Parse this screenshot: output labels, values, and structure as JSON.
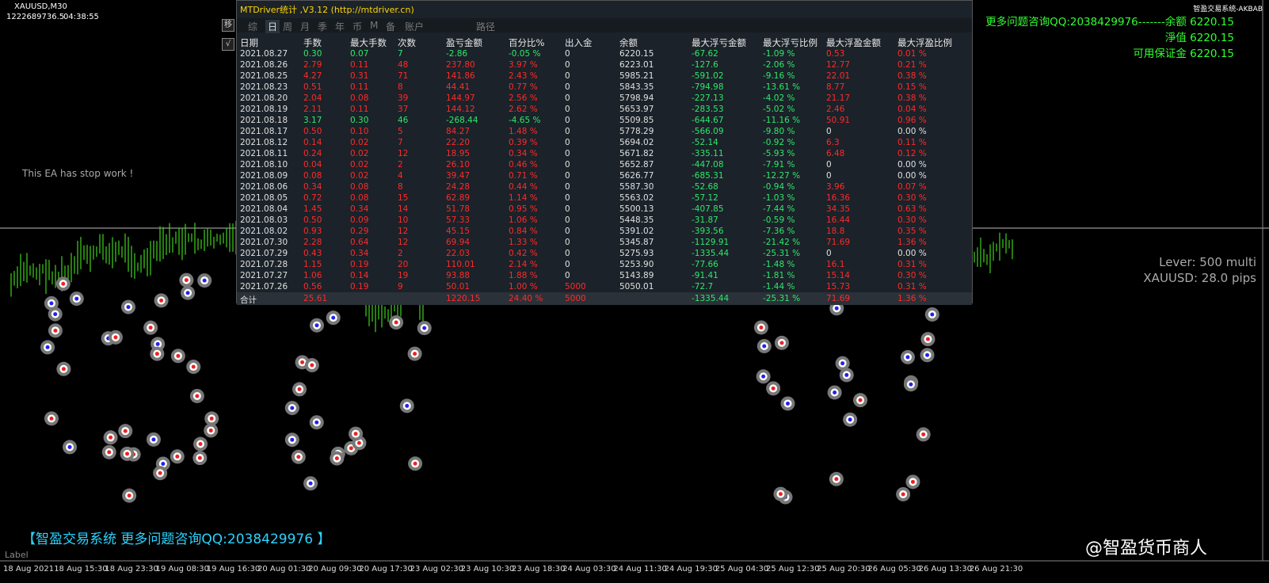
{
  "header": {
    "symbol": "XAUUSD,M30",
    "account": "1222689736.5",
    "time": "04:38:55",
    "brand": "智盈交易系统-AKBAB"
  },
  "account_info": [
    "更多问题咨询QQ:2038429976-------余额 6220.15",
    "淨值 6220.15",
    "可用保证金 6220.15"
  ],
  "status": "This EA has stop work !",
  "lever": [
    "Lever: 500 multi",
    "XAUUSD: 28.0 pips"
  ],
  "footer": {
    "banner": "【智盈交易系统 更多问题咨询QQ:2038429976 】",
    "label": "Label",
    "watermark": "@智盈货币商人"
  },
  "x_axis": [
    "18 Aug 2021",
    "18 Aug 15:30",
    "18 Aug 23:30",
    "19 Aug 08:30",
    "19 Aug 16:30",
    "20 Aug 01:30",
    "20 Aug 09:30",
    "20 Aug 17:30",
    "23 Aug 02:30",
    "23 Aug 10:30",
    "23 Aug 18:30",
    "24 Aug 03:30",
    "24 Aug 11:30",
    "24 Aug 19:30",
    "25 Aug 04:30",
    "25 Aug 12:30",
    "25 Aug 20:30",
    "26 Aug 05:30",
    "26 Aug 13:30",
    "26 Aug 21:30"
  ],
  "panel": {
    "title": "MTDriver统计 ,V3.12 (http://mtdriver.cn)",
    "side_buttons": [
      "移",
      "√"
    ],
    "tabs": [
      "综",
      "日",
      "周",
      "月",
      "季",
      "年",
      "币",
      "M",
      "备",
      "账户",
      "路径"
    ],
    "columns": [
      "日期",
      "手数",
      "最大手数",
      "次数",
      "盈亏金额",
      "百分比%",
      "出入金",
      "余额",
      "最大浮亏金额",
      "最大浮亏比例",
      "最大浮盈金额",
      "最大浮盈比例"
    ],
    "rows": [
      [
        "2021.08.27",
        "0.30",
        "0.07",
        "7",
        "-2.86",
        "-0.05 %",
        "0",
        "6220.15",
        "-67.62",
        "-1.09 %",
        "0.53",
        "0.01 %"
      ],
      [
        "2021.08.26",
        "2.79",
        "0.11",
        "48",
        "237.80",
        "3.97 %",
        "0",
        "6223.01",
        "-127.6",
        "-2.06 %",
        "12.77",
        "0.21 %"
      ],
      [
        "2021.08.25",
        "4.27",
        "0.31",
        "71",
        "141.86",
        "2.43 %",
        "0",
        "5985.21",
        "-591.02",
        "-9.16 %",
        "22.01",
        "0.38 %"
      ],
      [
        "2021.08.23",
        "0.51",
        "0.11",
        "8",
        "44.41",
        "0.77 %",
        "0",
        "5843.35",
        "-794.98",
        "-13.61 %",
        "8.77",
        "0.15 %"
      ],
      [
        "2021.08.20",
        "2.04",
        "0.08",
        "39",
        "144.97",
        "2.56 %",
        "0",
        "5798.94",
        "-227.13",
        "-4.02 %",
        "21.17",
        "0.38 %"
      ],
      [
        "2021.08.19",
        "2.11",
        "0.11",
        "37",
        "144.12",
        "2.62 %",
        "0",
        "5653.97",
        "-283.53",
        "-5.02 %",
        "2.46",
        "0.04 %"
      ],
      [
        "2021.08.18",
        "3.17",
        "0.30",
        "46",
        "-268.44",
        "-4.65 %",
        "0",
        "5509.85",
        "-644.67",
        "-11.16 %",
        "50.91",
        "0.96 %"
      ],
      [
        "2021.08.17",
        "0.50",
        "0.10",
        "5",
        "84.27",
        "1.48 %",
        "0",
        "5778.29",
        "-566.09",
        "-9.80 %",
        "0",
        "0.00 %"
      ],
      [
        "2021.08.12",
        "0.14",
        "0.02",
        "7",
        "22.20",
        "0.39 %",
        "0",
        "5694.02",
        "-52.14",
        "-0.92 %",
        "6.3",
        "0.11 %"
      ],
      [
        "2021.08.11",
        "0.24",
        "0.02",
        "12",
        "18.95",
        "0.34 %",
        "0",
        "5671.82",
        "-335.11",
        "-5.93 %",
        "6.48",
        "0.12 %"
      ],
      [
        "2021.08.10",
        "0.04",
        "0.02",
        "2",
        "26.10",
        "0.46 %",
        "0",
        "5652.87",
        "-447.08",
        "-7.91 %",
        "0",
        "0.00 %"
      ],
      [
        "2021.08.09",
        "0.08",
        "0.02",
        "4",
        "39.47",
        "0.71 %",
        "0",
        "5626.77",
        "-685.31",
        "-12.27 %",
        "0",
        "0.00 %"
      ],
      [
        "2021.08.06",
        "0.34",
        "0.08",
        "8",
        "24.28",
        "0.44 %",
        "0",
        "5587.30",
        "-52.68",
        "-0.94 %",
        "3.96",
        "0.07 %"
      ],
      [
        "2021.08.05",
        "0.72",
        "0.08",
        "15",
        "62.89",
        "1.14 %",
        "0",
        "5563.02",
        "-57.12",
        "-1.03 %",
        "16.36",
        "0.30 %"
      ],
      [
        "2021.08.04",
        "1.45",
        "0.34",
        "14",
        "51.78",
        "0.95 %",
        "0",
        "5500.13",
        "-407.85",
        "-7.44 %",
        "34.35",
        "0.63 %"
      ],
      [
        "2021.08.03",
        "0.50",
        "0.09",
        "10",
        "57.33",
        "1.06 %",
        "0",
        "5448.35",
        "-31.87",
        "-0.59 %",
        "16.44",
        "0.30 %"
      ],
      [
        "2021.08.02",
        "0.93",
        "0.29",
        "12",
        "45.15",
        "0.84 %",
        "0",
        "5391.02",
        "-393.56",
        "-7.36 %",
        "18.8",
        "0.35 %"
      ],
      [
        "2021.07.30",
        "2.28",
        "0.64",
        "12",
        "69.94",
        "1.33 %",
        "0",
        "5345.87",
        "-1129.91",
        "-21.42 %",
        "71.69",
        "1.36 %"
      ],
      [
        "2021.07.29",
        "0.43",
        "0.34",
        "2",
        "22.03",
        "0.42 %",
        "0",
        "5275.93",
        "-1335.44",
        "-25.31 %",
        "0",
        "0.00 %"
      ],
      [
        "2021.07.28",
        "1.15",
        "0.19",
        "20",
        "110.01",
        "2.14 %",
        "0",
        "5253.90",
        "-77.66",
        "-1.48 %",
        "16.1",
        "0.31 %"
      ],
      [
        "2021.07.27",
        "1.06",
        "0.14",
        "19",
        "93.88",
        "1.88 %",
        "0",
        "5143.89",
        "-91.41",
        "-1.81 %",
        "15.14",
        "0.30 %"
      ],
      [
        "2021.07.26",
        "0.56",
        "0.19",
        "9",
        "50.01",
        "1.00 %",
        "5000",
        "5050.01",
        "-72.7",
        "-1.44 %",
        "15.73",
        "0.31 %"
      ]
    ],
    "total": [
      "合计",
      "25.61",
      null,
      null,
      "1220.15",
      "24.40 %",
      "5000",
      null,
      "-1335.44",
      "-25.31 %",
      "71.69",
      "1.36 %"
    ]
  }
}
